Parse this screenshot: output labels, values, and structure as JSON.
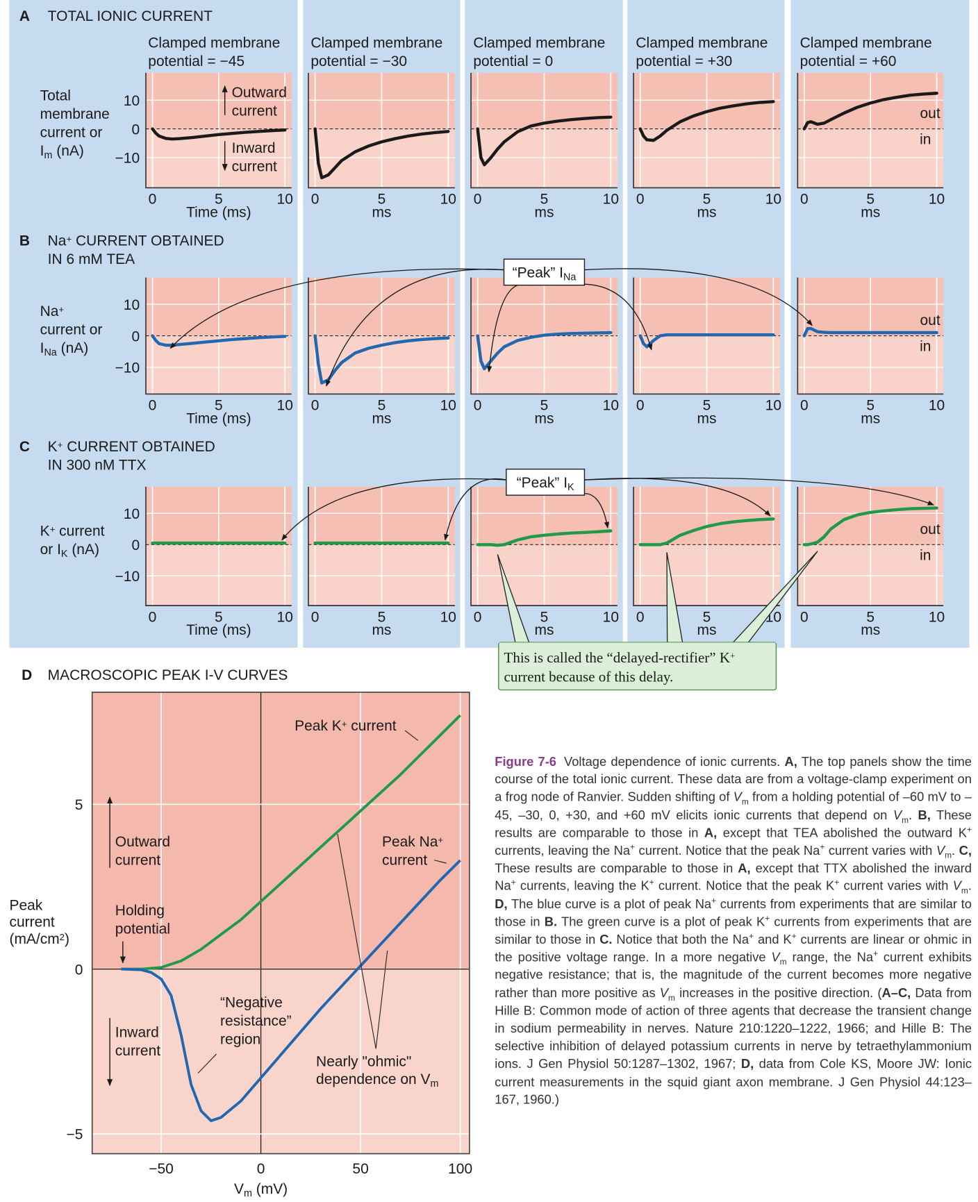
{
  "chart_data": [
    {
      "type": "line",
      "label": "A",
      "title": [
        "TOTAL IONIC CURRENT"
      ],
      "y_label": [
        "Total",
        "membrane",
        "current or",
        [
          "I",
          {
            "sub": "m"
          },
          " (nA)"
        ]
      ],
      "color": "#1a1a1a",
      "xlim": [
        -0.5,
        10.5
      ],
      "ylim": [
        -20.5,
        19.5
      ],
      "xticks": [
        0,
        5,
        10
      ],
      "yticks": [
        {
          "value": -10,
          "label": "−10"
        },
        0,
        10
      ],
      "x": [
        0,
        0.25,
        0.5,
        1,
        1.5,
        2,
        3,
        4,
        5,
        6,
        7,
        8,
        9,
        10
      ],
      "panels": [
        {
          "title": [
            "Clamped membrane",
            "potential = −45"
          ],
          "x_label": "Time (ms)",
          "annotations": {
            "outward": [
              "Outward",
              "current"
            ],
            "inward": [
              "Inward",
              "current"
            ]
          },
          "values": [
            0,
            -1.5,
            -2.5,
            -3.3,
            -3.5,
            -3.4,
            -3.0,
            -2.5,
            -2.0,
            -1.6,
            -1.2,
            -0.9,
            -0.6,
            -0.4
          ]
        },
        {
          "title": [
            "Clamped membrane",
            "potential = −30"
          ],
          "x_label": "ms",
          "values": [
            0,
            -12,
            -17,
            -16,
            -13.5,
            -11,
            -8,
            -6,
            -4.5,
            -3.4,
            -2.5,
            -1.8,
            -1.3,
            -0.9
          ]
        },
        {
          "title": [
            "Clamped membrane",
            "potential = 0"
          ],
          "x_label": "ms",
          "values": [
            0,
            -10,
            -12.5,
            -10,
            -7,
            -4.5,
            -1,
            1,
            2,
            2.7,
            3.2,
            3.6,
            3.9,
            4.1
          ]
        },
        {
          "title": [
            "Clamped membrane",
            "potential = +30"
          ],
          "x_label": "ms",
          "values": [
            0,
            -2.5,
            -3.8,
            -4,
            -2.5,
            -0.5,
            2.5,
            4.5,
            6,
            7.2,
            8,
            8.7,
            9.2,
            9.5
          ]
        },
        {
          "title": [
            "Clamped membrane",
            "potential = +60"
          ],
          "x_label": "ms",
          "annotations": {
            "out": "out",
            "in": "in"
          },
          "values": [
            0,
            2.2,
            2.5,
            1.6,
            2,
            3.2,
            5.5,
            7.5,
            9,
            10.2,
            11,
            11.7,
            12.1,
            12.4
          ]
        }
      ]
    },
    {
      "type": "line",
      "label": "B",
      "title": [
        [
          "Na",
          {
            "sup": "+"
          },
          " CURRENT OBTAINED"
        ],
        "IN 6 mM TEA"
      ],
      "y_label": [
        [
          "Na",
          {
            "sup": "+"
          }
        ],
        "current or",
        [
          "I",
          {
            "sub": "Na"
          },
          " (nA)"
        ]
      ],
      "callout": [
        "“Peak” I",
        {
          "sub": "Na"
        }
      ],
      "color": "#2168b0",
      "xlim": [
        -0.5,
        10.5
      ],
      "ylim": [
        -18.5,
        18.5
      ],
      "xticks": [
        0,
        5,
        10
      ],
      "yticks": [
        {
          "value": -10,
          "label": "−10"
        },
        0,
        10
      ],
      "x": [
        0,
        0.25,
        0.5,
        1,
        1.5,
        2,
        3,
        4,
        5,
        6,
        7,
        8,
        9,
        10
      ],
      "panels": [
        {
          "x_label": "Time (ms)",
          "values": [
            0,
            -1.5,
            -2.5,
            -3,
            -3,
            -2.8,
            -2.4,
            -2,
            -1.6,
            -1.2,
            -0.9,
            -0.6,
            -0.4,
            -0.2
          ]
        },
        {
          "x_label": "ms",
          "values": [
            0,
            -9,
            -15,
            -14,
            -11,
            -8.5,
            -5.5,
            -4,
            -3,
            -2.2,
            -1.6,
            -1.2,
            -0.9,
            -0.7
          ]
        },
        {
          "x_label": "ms",
          "values": [
            0,
            -8,
            -10.5,
            -8,
            -5.5,
            -3.5,
            -1.5,
            -0.5,
            0.2,
            0.5,
            0.7,
            0.8,
            0.9,
            1
          ]
        },
        {
          "x_label": "ms",
          "values": [
            0,
            -2.5,
            -3.5,
            -1.5,
            0,
            0.3,
            0.3,
            0.3,
            0.3,
            0.3,
            0.3,
            0.3,
            0.3,
            0.3
          ]
        },
        {
          "x_label": "ms",
          "annotations": {
            "out": "out",
            "in": "in"
          },
          "values": [
            0,
            2.3,
            2.3,
            1.3,
            1.1,
            1,
            1,
            1,
            1,
            1,
            1,
            1,
            1,
            1
          ]
        }
      ]
    },
    {
      "type": "line",
      "label": "C",
      "title": [
        [
          "K",
          {
            "sup": "+"
          },
          " CURRENT OBTAINED"
        ],
        "IN 300 nM TTX"
      ],
      "y_label": [
        [
          "K",
          {
            "sup": "+"
          },
          " current"
        ],
        [
          "or I",
          {
            "sub": "K"
          },
          " (nA)"
        ]
      ],
      "callout": [
        "“Peak” I",
        {
          "sub": "K"
        }
      ],
      "note": [
        [
          "This is called the “delayed-rectifier” K",
          {
            "sup": "+"
          }
        ],
        "current because of this delay."
      ],
      "color": "#1f9a48",
      "xlim": [
        -0.5,
        10.5
      ],
      "ylim": [
        -19.5,
        18.5
      ],
      "xticks": [
        0,
        5,
        10
      ],
      "yticks": [
        {
          "value": -10,
          "label": "−10"
        },
        0,
        10
      ],
      "x": [
        0,
        0.25,
        0.5,
        1,
        1.5,
        2,
        3,
        4,
        5,
        6,
        7,
        8,
        9,
        10
      ],
      "panels": [
        {
          "x_label": "Time (ms)",
          "values": [
            0.5,
            0.5,
            0.5,
            0.5,
            0.5,
            0.5,
            0.5,
            0.5,
            0.5,
            0.5,
            0.5,
            0.5,
            0.5,
            0.5
          ]
        },
        {
          "x_label": "ms",
          "values": [
            0.5,
            0.5,
            0.5,
            0.5,
            0.5,
            0.5,
            0.5,
            0.5,
            0.5,
            0.5,
            0.5,
            0.5,
            0.5,
            0.5
          ]
        },
        {
          "x_label": "ms",
          "values": [
            0,
            0,
            0,
            0,
            -0.2,
            0,
            1.5,
            2.5,
            3,
            3.4,
            3.7,
            3.9,
            4.1,
            4.4
          ]
        },
        {
          "x_label": "ms",
          "values": [
            0,
            0,
            0,
            0,
            0,
            0.5,
            3,
            4.5,
            5.8,
            6.7,
            7.3,
            7.7,
            8,
            8.2
          ]
        },
        {
          "x_label": "ms",
          "annotations": {
            "out": "out",
            "in": "in"
          },
          "values": [
            0,
            0,
            0.2,
            0.8,
            2.5,
            5,
            8,
            9.5,
            10.3,
            10.8,
            11.2,
            11.5,
            11.6,
            11.7
          ]
        }
      ]
    },
    {
      "type": "line",
      "label": "D",
      "title": "MACROSCOPIC PEAK I-V CURVES",
      "x_label": [
        "V",
        {
          "sub": "m"
        },
        " (mV)"
      ],
      "y_label": [
        "Peak",
        "current",
        [
          "(mA/cm",
          {
            "sup": "2"
          },
          ")"
        ]
      ],
      "xlim": [
        -84.6,
        104.6
      ],
      "ylim": [
        -5.6,
        8.4
      ],
      "xticks": [
        {
          "value": -50,
          "label": "−50"
        },
        0,
        50,
        100
      ],
      "yticks": [
        {
          "value": -5,
          "label": "−5"
        },
        0,
        5
      ],
      "annotations": {
        "outward": [
          "Outward",
          "current"
        ],
        "inward": [
          "Inward",
          "current"
        ],
        "holding": [
          "Holding",
          "potential"
        ],
        "negative": [
          "“Negative",
          "resistance”",
          "region"
        ],
        "ohmic": [
          "Nearly \"ohmic\"",
          [
            "dependence on V",
            {
              "sub": "m"
            }
          ]
        ]
      },
      "series": [
        {
          "name": [
            "Peak K",
            {
              "sup": "+"
            },
            " current"
          ],
          "color": "#1e9b4a",
          "x": [
            -70,
            -60,
            -50,
            -40,
            -30,
            -20,
            -10,
            0,
            10,
            20,
            30,
            40,
            50,
            60,
            70,
            80,
            90,
            100
          ],
          "values": [
            0,
            0,
            0.05,
            0.25,
            0.6,
            1.05,
            1.5,
            2.05,
            2.6,
            3.15,
            3.7,
            4.25,
            4.8,
            5.35,
            5.9,
            6.5,
            7.1,
            7.7
          ]
        },
        {
          "name": [
            [
              "Peak Na",
              {
                "sup": "+"
              }
            ],
            "current"
          ],
          "color": "#1f67b1",
          "x": [
            -70,
            -60,
            -55,
            -50,
            -45,
            -40,
            -35,
            -30,
            -25,
            -20,
            -10,
            0,
            10,
            20,
            30,
            40,
            50,
            60,
            70,
            80,
            90,
            100
          ],
          "values": [
            0,
            -0.02,
            -0.1,
            -0.3,
            -0.8,
            -2,
            -3.5,
            -4.3,
            -4.6,
            -4.5,
            -4.0,
            -3.3,
            -2.6,
            -1.9,
            -1.2,
            -0.55,
            0.1,
            0.75,
            1.4,
            2.05,
            2.7,
            3.3
          ]
        }
      ]
    }
  ],
  "caption": {
    "label": "Figure 7-6",
    "text": [
      "Voltage dependence of ionic currents. ",
      {
        "b": "A,"
      },
      " The top panels show the time course of the total ionic current. These data are from a voltage-clamp experiment on a frog node of Ranvier. Sudden shifting of ",
      {
        "i": "V"
      },
      {
        "sub": "m"
      },
      " from a holding potential of –60 mV to –45, –30, 0, +30, and +60 mV elicits ionic currents that depend on ",
      {
        "i": "V"
      },
      {
        "sub": "m"
      },
      ". ",
      {
        "b": "B,"
      },
      " These results are comparable to those in ",
      {
        "b": "A,"
      },
      " except that TEA abolished the outward K",
      {
        "sup": "+"
      },
      " currents, leaving the Na",
      {
        "sup": "+"
      },
      " current. Notice that the peak Na",
      {
        "sup": "+"
      },
      " current varies with ",
      {
        "i": "V"
      },
      {
        "sub": "m"
      },
      ". ",
      {
        "b": "C,"
      },
      " These results are comparable to those in ",
      {
        "b": "A,"
      },
      " except that TTX abolished the inward Na",
      {
        "sup": "+"
      },
      " currents, leaving the K",
      {
        "sup": "+"
      },
      " current. Notice that the peak K",
      {
        "sup": "+"
      },
      " current varies with ",
      {
        "i": "V"
      },
      {
        "sub": "m"
      },
      ". ",
      {
        "b": "D,"
      },
      " The blue curve is a plot of peak Na",
      {
        "sup": "+"
      },
      " currents from experiments that are similar to those in ",
      {
        "b": "B."
      },
      " The green curve is a plot of peak K",
      {
        "sup": "+"
      },
      " currents from experiments that are similar to those in ",
      {
        "b": "C."
      },
      " Notice that both the Na",
      {
        "sup": "+"
      },
      " and K",
      {
        "sup": "+"
      },
      " currents are linear or ohmic in the positive voltage range. In a more negative ",
      {
        "i": "V"
      },
      {
        "sub": "m"
      },
      " range, the Na",
      {
        "sup": "+"
      },
      " current exhibits negative resistance; that is, the magnitude of the current becomes more negative rather than more positive as ",
      {
        "i": "V"
      },
      {
        "sub": "m"
      },
      " increases in the positive direction. (",
      {
        "b": "A–C,"
      },
      " Data from Hille B: Common mode of action of three agents that decrease the transient change in sodium permeability in nerves. Nature 210:1220–1222, 1966; and Hille B: The selective inhibition of delayed potassium currents in nerve by tetraethylammonium ions. J Gen Physiol 50:1287–1302, 1967; ",
      {
        "b": "D,"
      },
      " data from Cole KS, Moore JW: Ionic current measurements in the squid giant axon membrane. J Gen Physiol 44:123–167, 1960.)"
    ]
  }
}
